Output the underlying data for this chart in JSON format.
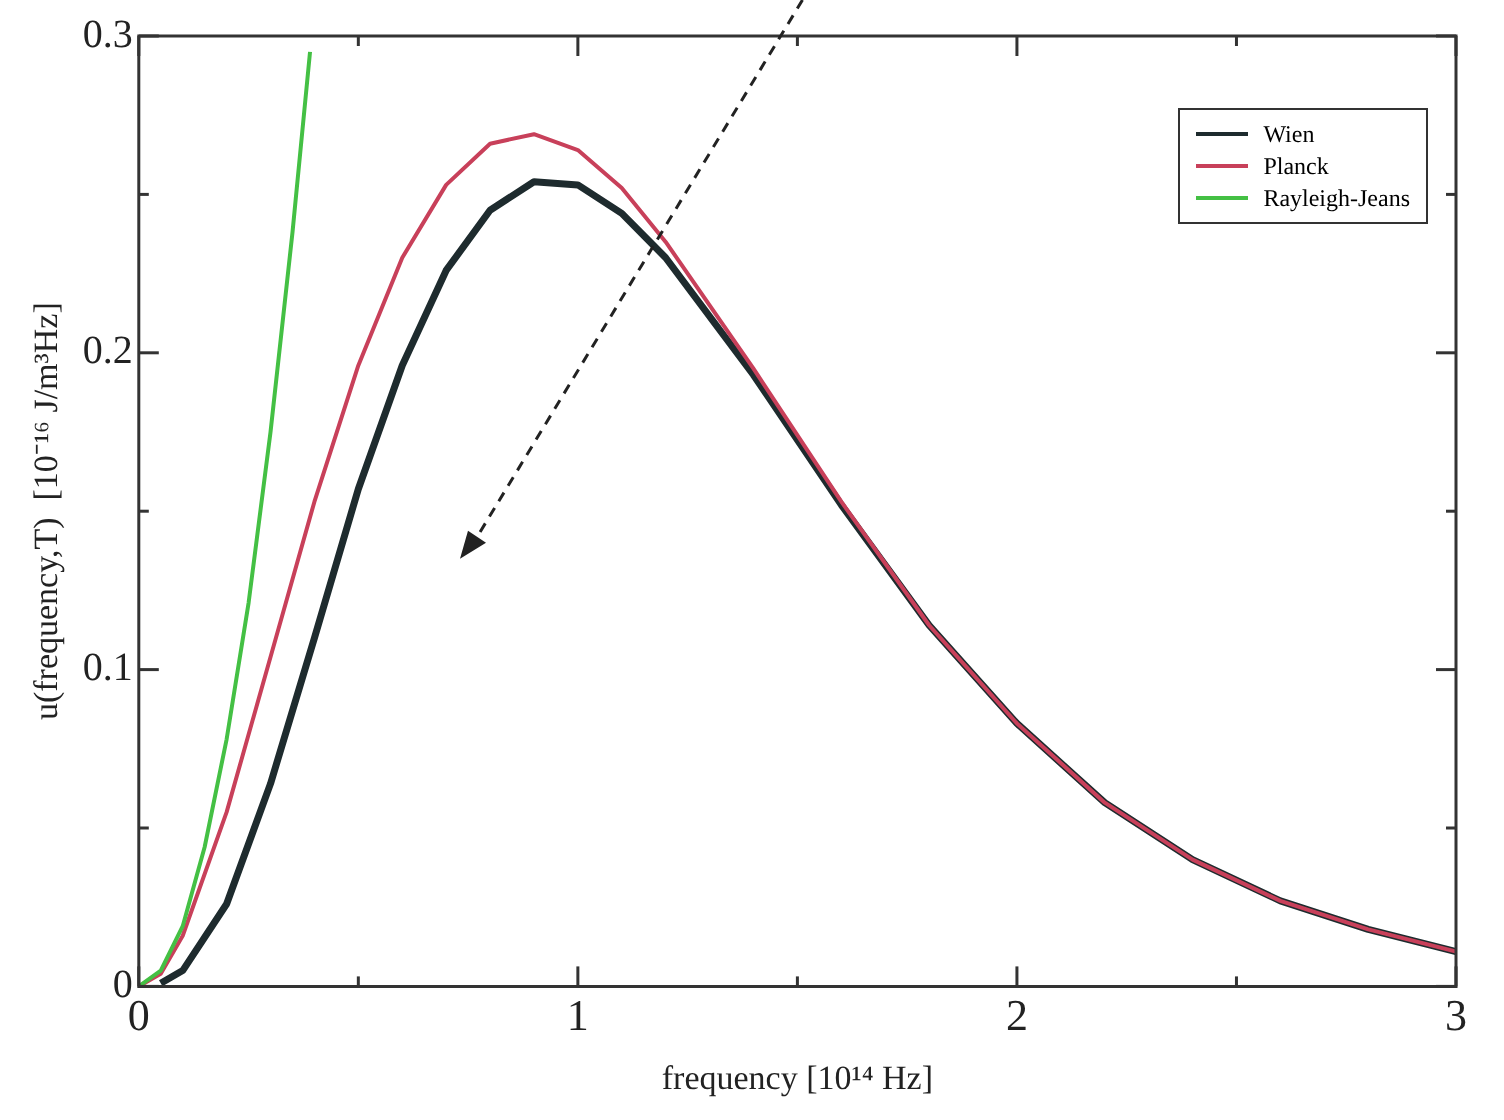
{
  "chart_data": {
    "type": "line",
    "xlabel": "frequency [10¹⁴ Hz]",
    "ylabel": "u(frequency,T)  [10⁻¹⁶ J/m³Hz]",
    "xlim": [
      0,
      3
    ],
    "xticks": [
      0,
      1,
      2,
      3
    ],
    "ylim": [
      0,
      0.3
    ],
    "yticks": [
      0,
      0.1,
      0.2,
      0.3
    ],
    "grid": false,
    "legend": "top right",
    "marker": "none",
    "line_style": "solid",
    "series": [
      {
        "name": "Wien",
        "color": "#1e2b2e",
        "x": [
          0.05,
          0.1,
          0.2,
          0.3,
          0.4,
          0.5,
          0.6,
          0.7,
          0.8,
          0.9,
          1.0,
          1.1,
          1.2,
          1.4,
          1.6,
          1.8,
          2.0,
          2.2,
          2.4,
          2.6,
          2.8,
          3.0
        ],
        "values": [
          0.001,
          0.005,
          0.026,
          0.064,
          0.11,
          0.157,
          0.196,
          0.226,
          0.245,
          0.254,
          0.253,
          0.244,
          0.23,
          0.193,
          0.152,
          0.114,
          0.083,
          0.058,
          0.04,
          0.027,
          0.018,
          0.011
        ]
      },
      {
        "name": "Planck",
        "color": "#c8405a",
        "x": [
          0,
          0.05,
          0.1,
          0.2,
          0.3,
          0.4,
          0.5,
          0.6,
          0.7,
          0.8,
          0.9,
          1.0,
          1.1,
          1.2,
          1.4,
          1.6,
          1.8,
          2.0,
          2.2,
          2.4,
          2.6,
          2.8,
          3.0
        ],
        "values": [
          0,
          0.004,
          0.016,
          0.055,
          0.104,
          0.153,
          0.196,
          0.23,
          0.253,
          0.266,
          0.269,
          0.264,
          0.252,
          0.235,
          0.195,
          0.153,
          0.114,
          0.083,
          0.058,
          0.04,
          0.027,
          0.018,
          0.011
        ]
      },
      {
        "name": "Rayleigh-Jeans",
        "color": "#44c044",
        "x": [
          0,
          0.05,
          0.1,
          0.15,
          0.2,
          0.25,
          0.3,
          0.35,
          0.39
        ],
        "values": [
          0,
          0.005,
          0.019,
          0.044,
          0.078,
          0.121,
          0.175,
          0.238,
          0.295
        ]
      }
    ]
  }
}
